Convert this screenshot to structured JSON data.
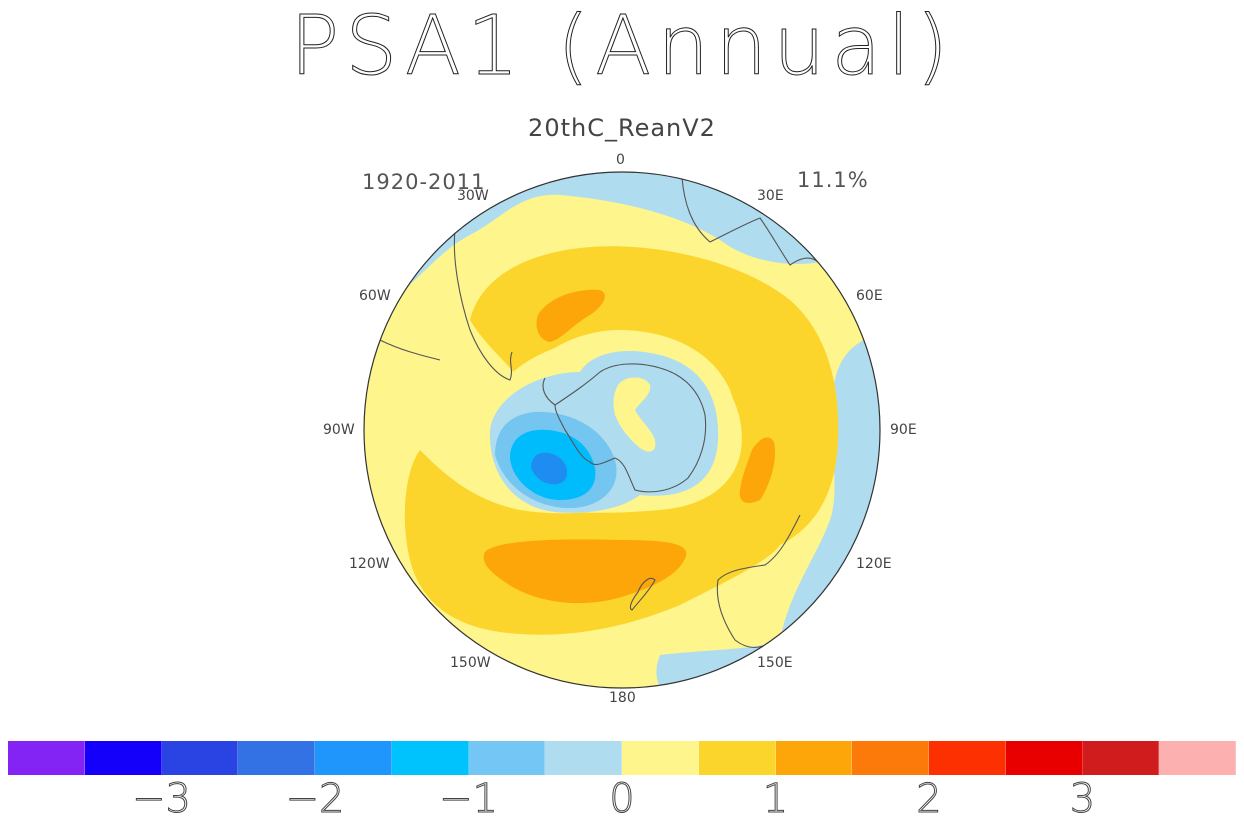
{
  "title": "PSA1 (Annual)",
  "subtitle": "20thC_ReanV2",
  "period": "1920-2011",
  "variance": "11.1%",
  "longitude_labels": {
    "lon_0": "0",
    "lon_30e": "30E",
    "lon_60e": "60E",
    "lon_90e": "90E",
    "lon_120e": "120E",
    "lon_150e": "150E",
    "lon_180": "180",
    "lon_150w": "150W",
    "lon_120w": "120W",
    "lon_90w": "90W",
    "lon_60w": "60W",
    "lon_30w": "30W"
  },
  "colors": {
    "ocean_light_blue": "#b0dcf0",
    "pale_yellow": "#fef58c",
    "yellow": "#fcd52c",
    "orange": "#fca60a",
    "blue_mid": "#74c6f0",
    "blue_cyan": "#00bcfc",
    "blue_deep": "#1e8cf0",
    "coastline": "#555555"
  },
  "colorbar": {
    "colors": [
      "#8424f4",
      "#1400fa",
      "#2a44e4",
      "#3272e4",
      "#1e96fc",
      "#00c2fc",
      "#74c6f4",
      "#b0dcf0",
      "#fef58c",
      "#fcd52c",
      "#fca60a",
      "#fc7a0a",
      "#fc3000",
      "#e80000",
      "#d01c1c",
      "#fcb0b0"
    ],
    "ticks": [
      {
        "label": "−3",
        "value": -3
      },
      {
        "label": "−2",
        "value": -2
      },
      {
        "label": "−1",
        "value": -1
      },
      {
        "label": "0",
        "value": 0
      },
      {
        "label": "1",
        "value": 1
      },
      {
        "label": "2",
        "value": 2
      },
      {
        "label": "3",
        "value": 3
      }
    ]
  }
}
